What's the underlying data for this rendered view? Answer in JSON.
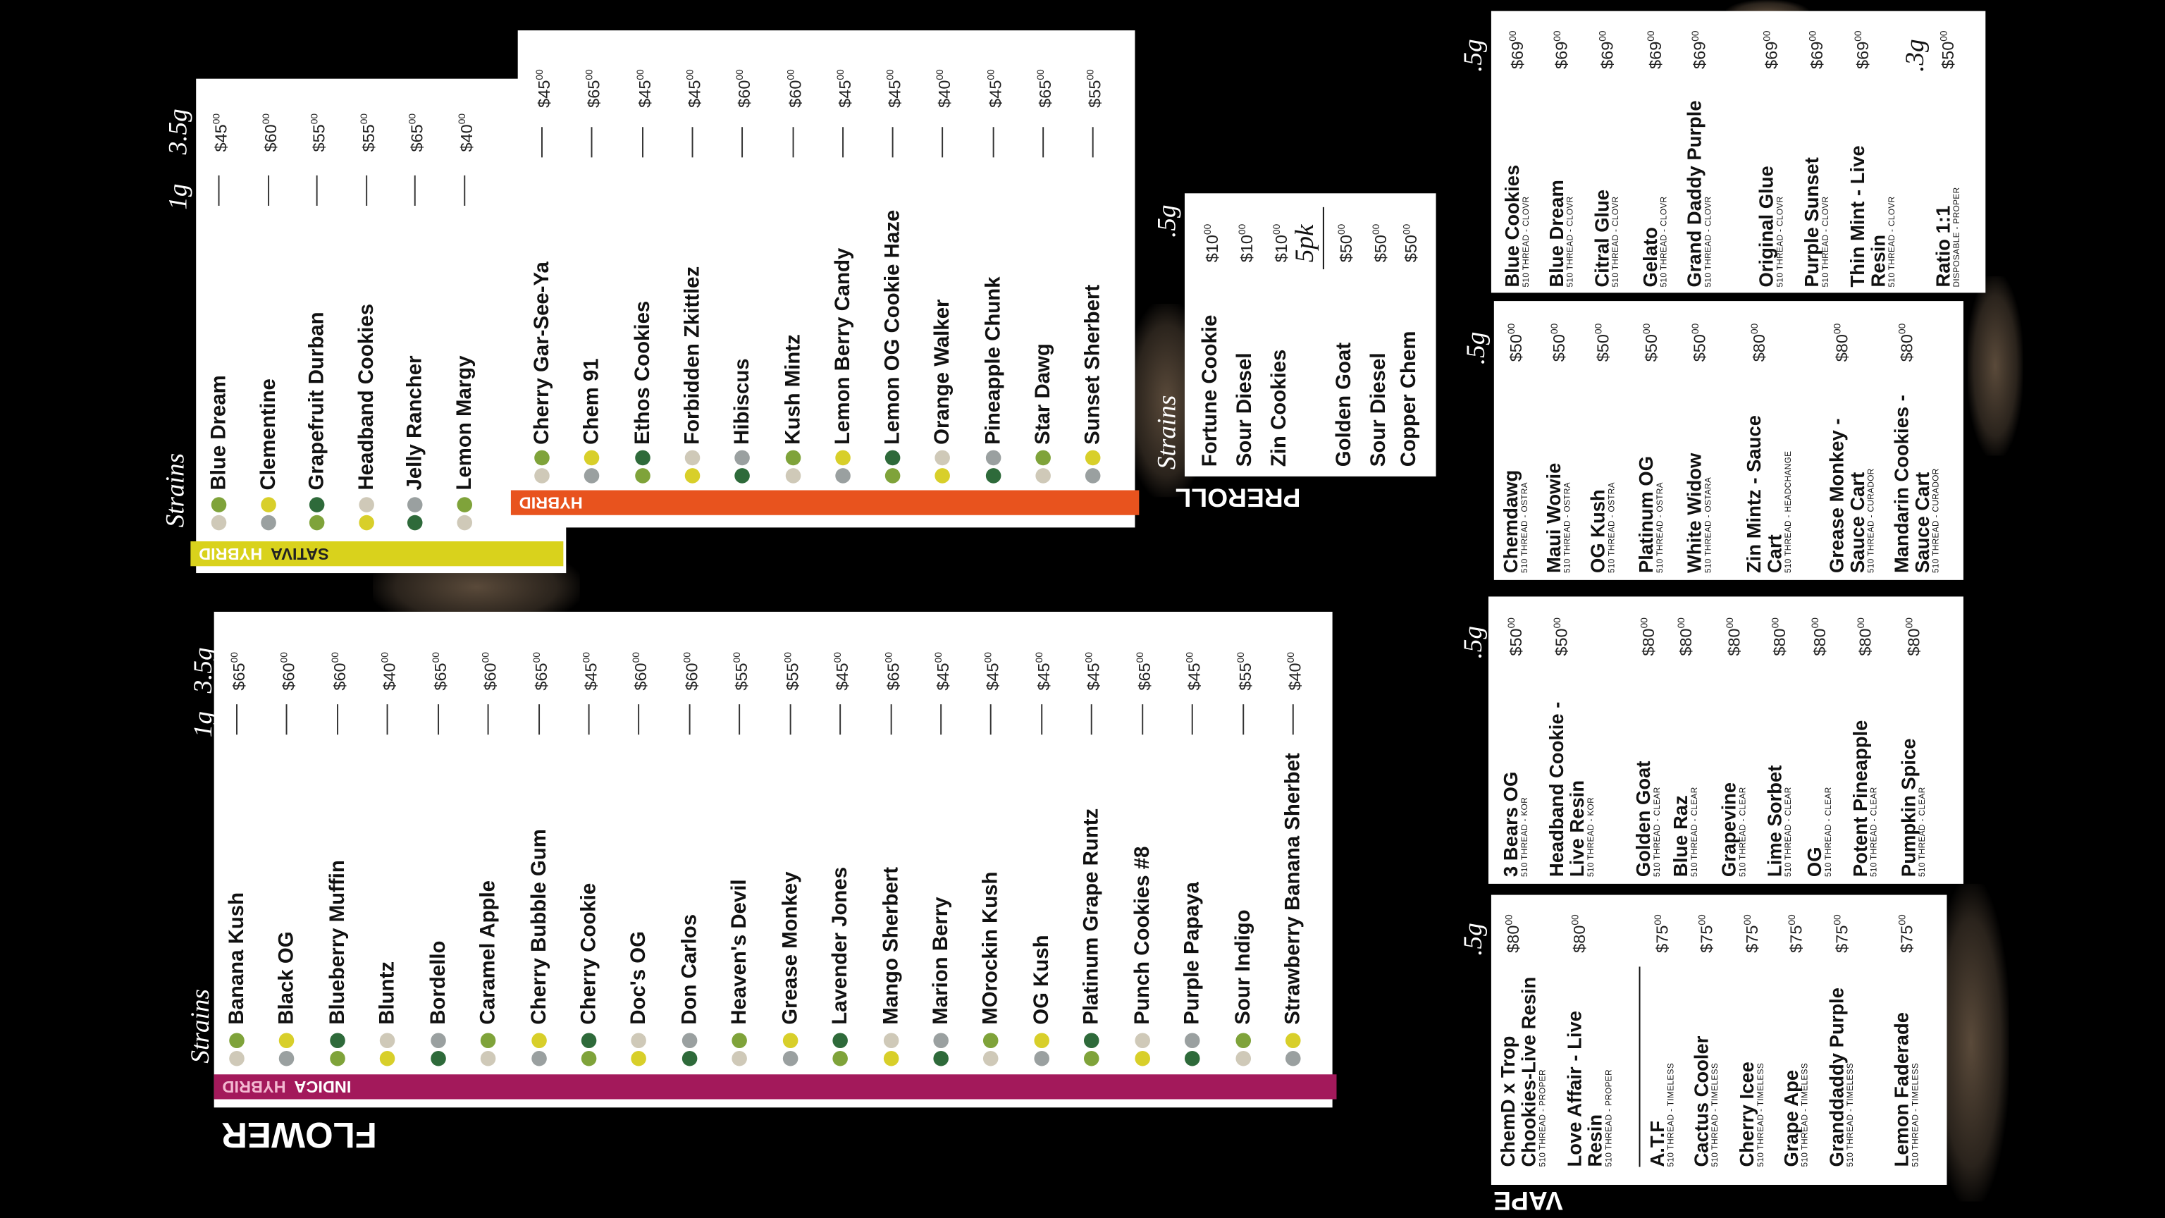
{
  "currency_cents": "00",
  "flower": {
    "title": "FLOWER",
    "tag": "INDICA",
    "tag2": "HYBRID",
    "header": {
      "strains": "Strains",
      "small": "1g",
      "large": "3.5g"
    },
    "items": [
      {
        "name": "Banana Kush",
        "price": "$65"
      },
      {
        "name": "Black OG",
        "price": "$60"
      },
      {
        "name": "Blueberry Muffin",
        "price": "$60"
      },
      {
        "name": "Bluntz",
        "price": "$40"
      },
      {
        "name": "Bordello",
        "price": "$65"
      },
      {
        "name": "Caramel Apple",
        "price": "$60"
      },
      {
        "name": "Cherry Bubble Gum",
        "price": "$65"
      },
      {
        "name": "Cherry Cookie",
        "price": "$45"
      },
      {
        "name": "Doc's OG",
        "price": "$60"
      },
      {
        "name": "Don Carlos",
        "price": "$60"
      },
      {
        "name": "Heaven's Devil",
        "price": "$55"
      },
      {
        "name": "Grease Monkey",
        "price": "$55"
      },
      {
        "name": "Lavender Jones",
        "price": "$45"
      },
      {
        "name": "Mango Sherbert",
        "price": "$65"
      },
      {
        "name": "Marion Berry",
        "price": "$45"
      },
      {
        "name": "MOrockin Kush",
        "price": "$45"
      },
      {
        "name": "OG Kush",
        "price": "$45"
      },
      {
        "name": "Platinum Grape Runtz",
        "price": "$45"
      },
      {
        "name": "Punch Cookies #8",
        "price": "$65"
      },
      {
        "name": "Purple Papaya",
        "price": "$45"
      },
      {
        "name": "Sour Indigo",
        "price": "$55"
      },
      {
        "name": "Strawberry Banana Sherbet",
        "price": "$40"
      }
    ]
  },
  "sativa": {
    "tag": "SATIVA",
    "tag2": "HYBRID",
    "header": {
      "strains": "Strains",
      "small": "1g",
      "large": "3.5g"
    },
    "items": [
      {
        "name": "Blue Dream",
        "price": "$45"
      },
      {
        "name": "Clementine",
        "price": "$60"
      },
      {
        "name": "Grapefruit Durban",
        "price": "$55"
      },
      {
        "name": "Headband Cookies",
        "price": "$55"
      },
      {
        "name": "Jelly Rancher",
        "price": "$65"
      },
      {
        "name": "Lemon Margy",
        "price": "$40"
      }
    ]
  },
  "hybrid": {
    "tag": "HYBRID",
    "items": [
      {
        "name": "Cherry Gar-See-Ya",
        "price": "$45"
      },
      {
        "name": "Chem 91",
        "price": "$65"
      },
      {
        "name": "Ethos Cookies",
        "price": "$45"
      },
      {
        "name": "Forbidden Zkittlez",
        "price": "$45"
      },
      {
        "name": "Hibiscus",
        "price": "$60"
      },
      {
        "name": "Kush Mintz",
        "price": "$60"
      },
      {
        "name": "Lemon Berry Candy",
        "price": "$45"
      },
      {
        "name": "Lemon OG Cookie Haze",
        "price": "$45"
      },
      {
        "name": "Orange Walker",
        "price": "$40"
      },
      {
        "name": "Pineapple Chunk",
        "price": "$45"
      },
      {
        "name": "Star Dawg",
        "price": "$65"
      },
      {
        "name": "Sunset Sherbert",
        "price": "$55"
      }
    ]
  },
  "preroll": {
    "title": "PREROLL",
    "header": {
      "strains": "Strains",
      "size": ".5g"
    },
    "items": [
      {
        "name": "Fortune Cookie",
        "price": "$10"
      },
      {
        "name": "Sour Diesel",
        "price": "$10"
      },
      {
        "name": "Zin Cookies",
        "price": "$10"
      }
    ],
    "pack_label": "5pk",
    "pack_items": [
      {
        "name": "Golden Goat",
        "price": "$50"
      },
      {
        "name": "Sour Diesel",
        "price": "$50"
      },
      {
        "name": "Copper Chem",
        "price": "$50"
      }
    ]
  },
  "vape": {
    "title": "VAPE",
    "sections": [
      {
        "size": ".5g",
        "items": [
          {
            "name": "ChemD x Trop Chookies-Live Resin",
            "detail": "510 THREAD - PROPER",
            "price": "$80"
          },
          {
            "name": "Love Affair - Live Resin",
            "detail": "510 THREAD - PROPER",
            "price": "$80"
          },
          {
            "name": "A.T.F",
            "detail": "510 THREAD - TIMELESS",
            "price": "$75"
          },
          {
            "name": "Cactus Cooler",
            "detail": "510 THREAD - TIMELESS",
            "price": "$75"
          },
          {
            "name": "Cherry Icee",
            "detail": "510 THREAD - TIMELESS",
            "price": "$75"
          },
          {
            "name": "Grape Ape",
            "detail": "510 THREAD - TIMELESS",
            "price": "$75"
          },
          {
            "name": "Granddaddy Purple",
            "detail": "510 THREAD - TIMELESS",
            "price": "$75"
          },
          {
            "name": "Lemon Faderade",
            "detail": "510 THREAD - TIMELESS",
            "price": "$75"
          }
        ]
      },
      {
        "size": ".5g",
        "items": [
          {
            "name": "3 Bears OG",
            "detail": "510 THREAD - KOR",
            "price": "$50"
          },
          {
            "name": "Headband Cookie - Live Resin",
            "detail": "510 THREAD - KOR",
            "price": "$50"
          },
          {
            "name": "Golden Goat",
            "detail": "510 THREAD - CLEAR",
            "price": "$80"
          },
          {
            "name": "Blue Raz",
            "detail": "510 THREAD - CLEAR",
            "price": "$80"
          },
          {
            "name": "Grapevine",
            "detail": "510 THREAD - CLEAR",
            "price": "$80"
          },
          {
            "name": "Lime Sorbet",
            "detail": "510 THREAD - CLEAR",
            "price": "$80"
          },
          {
            "name": "OG",
            "detail": "510 THREAD - CLEAR",
            "price": "$80"
          },
          {
            "name": "Potent Pineapple",
            "detail": "510 THREAD - CLEAR",
            "price": "$80"
          },
          {
            "name": "Pumpkin Spice",
            "detail": "510 THREAD - CLEAR",
            "price": "$80"
          }
        ]
      },
      {
        "size": ".5g",
        "items": [
          {
            "name": "Chemdawg",
            "detail": "510 THREAD - OSTRA",
            "price": "$50"
          },
          {
            "name": "Maui Wowie",
            "detail": "510 THREAD - OSTRA",
            "price": "$50"
          },
          {
            "name": "OG Kush",
            "detail": "510 THREAD - OSTRA",
            "price": "$50"
          },
          {
            "name": "Platinum OG",
            "detail": "510 THREAD - OSTRA",
            "price": "$50"
          },
          {
            "name": "White Widow",
            "detail": "510 THREAD - OSTARA",
            "price": "$50"
          },
          {
            "name": "Zin Mintz - Sauce Cart",
            "detail": "510 THREAD - HEADCHANGE",
            "price": "$80"
          },
          {
            "name": "Grease Monkey - Sauce Cart",
            "detail": "510 THREAD - CURADOR",
            "price": "$80"
          },
          {
            "name": "Mandarin Cookies - Sauce Cart",
            "detail": "510 THREAD - CURADOR",
            "price": "$80"
          }
        ]
      },
      {
        "size": ".5g",
        "items": [
          {
            "name": "Blue Cookies",
            "detail": "510 THREAD - CLOVR",
            "price": "$69"
          },
          {
            "name": "Blue Dream",
            "detail": "510 THREAD - CLOVR",
            "price": "$69"
          },
          {
            "name": "Citral Glue",
            "detail": "510 THREAD - CLOVR",
            "price": "$69"
          },
          {
            "name": "Gelato",
            "detail": "510 THREAD - CLOVR",
            "price": "$69"
          },
          {
            "name": "Grand Daddy Purple",
            "detail": "510 THREAD - CLOVR",
            "price": "$69"
          },
          {
            "name": "Original Glue",
            "detail": "510 THREAD - CLOVR",
            "price": "$69"
          },
          {
            "name": "Purple Sunset",
            "detail": "510 THREAD - CLOVR",
            "price": "$69"
          },
          {
            "name": "Thin Mint - Live Resin",
            "detail": "510 THREAD - CLOVR",
            "price": "$69"
          }
        ]
      },
      {
        "size": ".3g",
        "items": [
          {
            "name": "Ratio 1:1",
            "detail": "DISPOSABLE - PROPER",
            "price": "$50"
          }
        ]
      }
    ]
  }
}
